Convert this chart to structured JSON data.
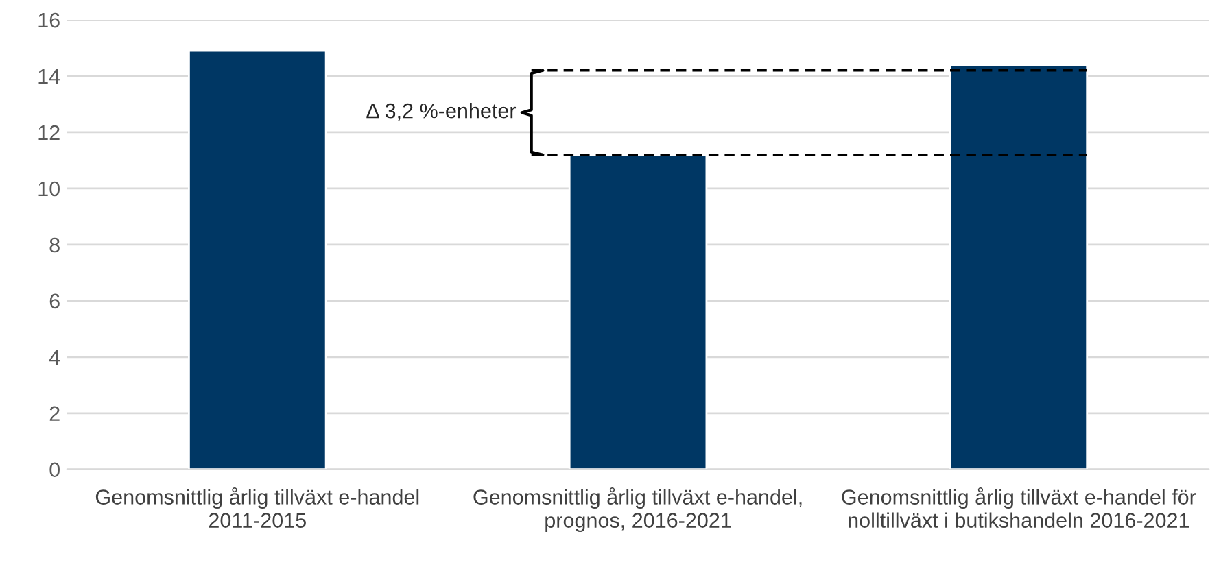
{
  "chart_data": {
    "type": "bar",
    "categories": [
      "Genomsnittlig årlig tillväxt e-handel 2011-2015",
      "Genomsnittlig årlig tillväxt e-handel, prognos, 2016-2021",
      "Genomsnittlig årlig tillväxt e-handel för nolltillväxt i butikshandeln 2016-2021"
    ],
    "values": [
      14.9,
      11.2,
      14.4
    ],
    "color": "#003764",
    "ylim": [
      0,
      16
    ],
    "yticks": [
      0,
      2,
      4,
      6,
      8,
      10,
      12,
      14,
      16
    ],
    "grid": "y",
    "ref_lines": [
      {
        "axis": "y",
        "value": 14.2,
        "color": "#000000",
        "line_style": "dashed"
      },
      {
        "axis": "y",
        "value": 11.2,
        "color": "#000000",
        "line_style": "dashed"
      }
    ],
    "annotations": [
      "Δ 3,2 %-enheter"
    ]
  }
}
